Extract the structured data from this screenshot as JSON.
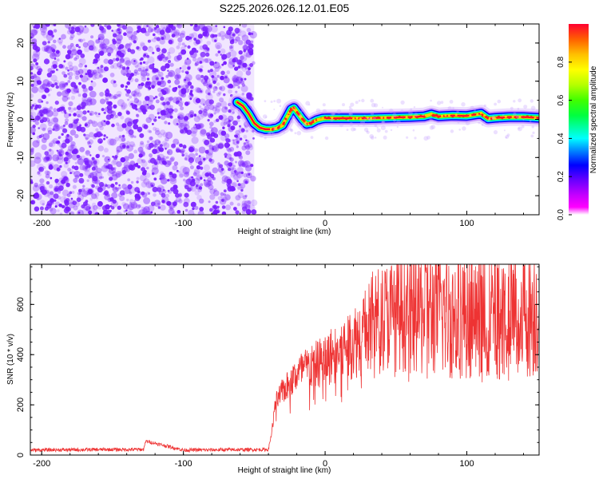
{
  "title": "S225.2026.026.12.01.E05",
  "chart_data": [
    {
      "type": "heatmap",
      "xlabel": "Height of straight line (km)",
      "ylabel": "Frequency (Hz)",
      "xlim": [
        -208,
        151
      ],
      "ylim": [
        -25,
        25
      ],
      "xticks": [
        -200,
        -100,
        0,
        100
      ],
      "yticks": [
        -20,
        -10,
        0,
        10,
        20
      ],
      "noise_region_end_km": -50,
      "noise_color": "#7a1fff",
      "ridge": {
        "x": [
          -62,
          -58,
          -54,
          -50,
          -46,
          -42,
          -38,
          -34,
          -30,
          -27,
          -24,
          -22,
          -19,
          -16,
          -13,
          -10,
          -6,
          -2,
          0,
          10,
          20,
          30,
          40,
          50,
          60,
          70,
          75,
          80,
          90,
          100,
          110,
          115,
          120,
          130,
          140,
          151
        ],
        "y": [
          4.5,
          3.5,
          1.5,
          -1.0,
          -2.2,
          -2.6,
          -2.6,
          -2.3,
          -1.5,
          0.5,
          2.6,
          3.0,
          1.5,
          0.0,
          -1.2,
          -1.0,
          -0.2,
          0.2,
          0.3,
          0.3,
          0.3,
          0.3,
          0.4,
          0.5,
          0.6,
          0.8,
          1.3,
          0.8,
          1.0,
          0.9,
          1.5,
          0.2,
          0.4,
          0.6,
          0.6,
          0.4
        ]
      },
      "colorbar": {
        "label": "Normalized spectral amplitude",
        "range": [
          0.0,
          1.0
        ],
        "ticks": [
          "0.0",
          "0.2",
          "0.4",
          "0.6",
          "0.8"
        ]
      }
    },
    {
      "type": "line",
      "xlabel": "Height of straight line (km)",
      "ylabel": "SNR (10 * v/v)",
      "xlim": [
        -208,
        151
      ],
      "ylim": [
        0,
        760
      ],
      "xticks": [
        -200,
        -100,
        0,
        100
      ],
      "yticks": [
        0,
        200,
        400,
        600
      ],
      "color": "#ee3333",
      "series": {
        "name": "SNR",
        "x": [
          -208,
          -150,
          -128,
          -126,
          -100,
          -70,
          -40,
          -38,
          -35,
          -30,
          -25,
          -20,
          -15,
          -10,
          -5,
          0,
          5,
          10,
          15,
          20,
          25,
          30,
          35,
          40,
          45,
          50,
          55,
          60,
          65,
          70,
          75,
          80,
          85,
          90,
          95,
          100,
          105,
          110,
          115,
          120,
          125,
          130,
          135,
          140,
          145,
          151
        ],
        "y": [
          20,
          22,
          22,
          55,
          20,
          21,
          22,
          80,
          210,
          260,
          290,
          330,
          350,
          360,
          375,
          390,
          410,
          420,
          450,
          470,
          490,
          520,
          570,
          570,
          580,
          590,
          600,
          600,
          600,
          600,
          600,
          610,
          590,
          580,
          590,
          600,
          590,
          560,
          580,
          600,
          590,
          580,
          590,
          600,
          600,
          610
        ]
      }
    }
  ]
}
